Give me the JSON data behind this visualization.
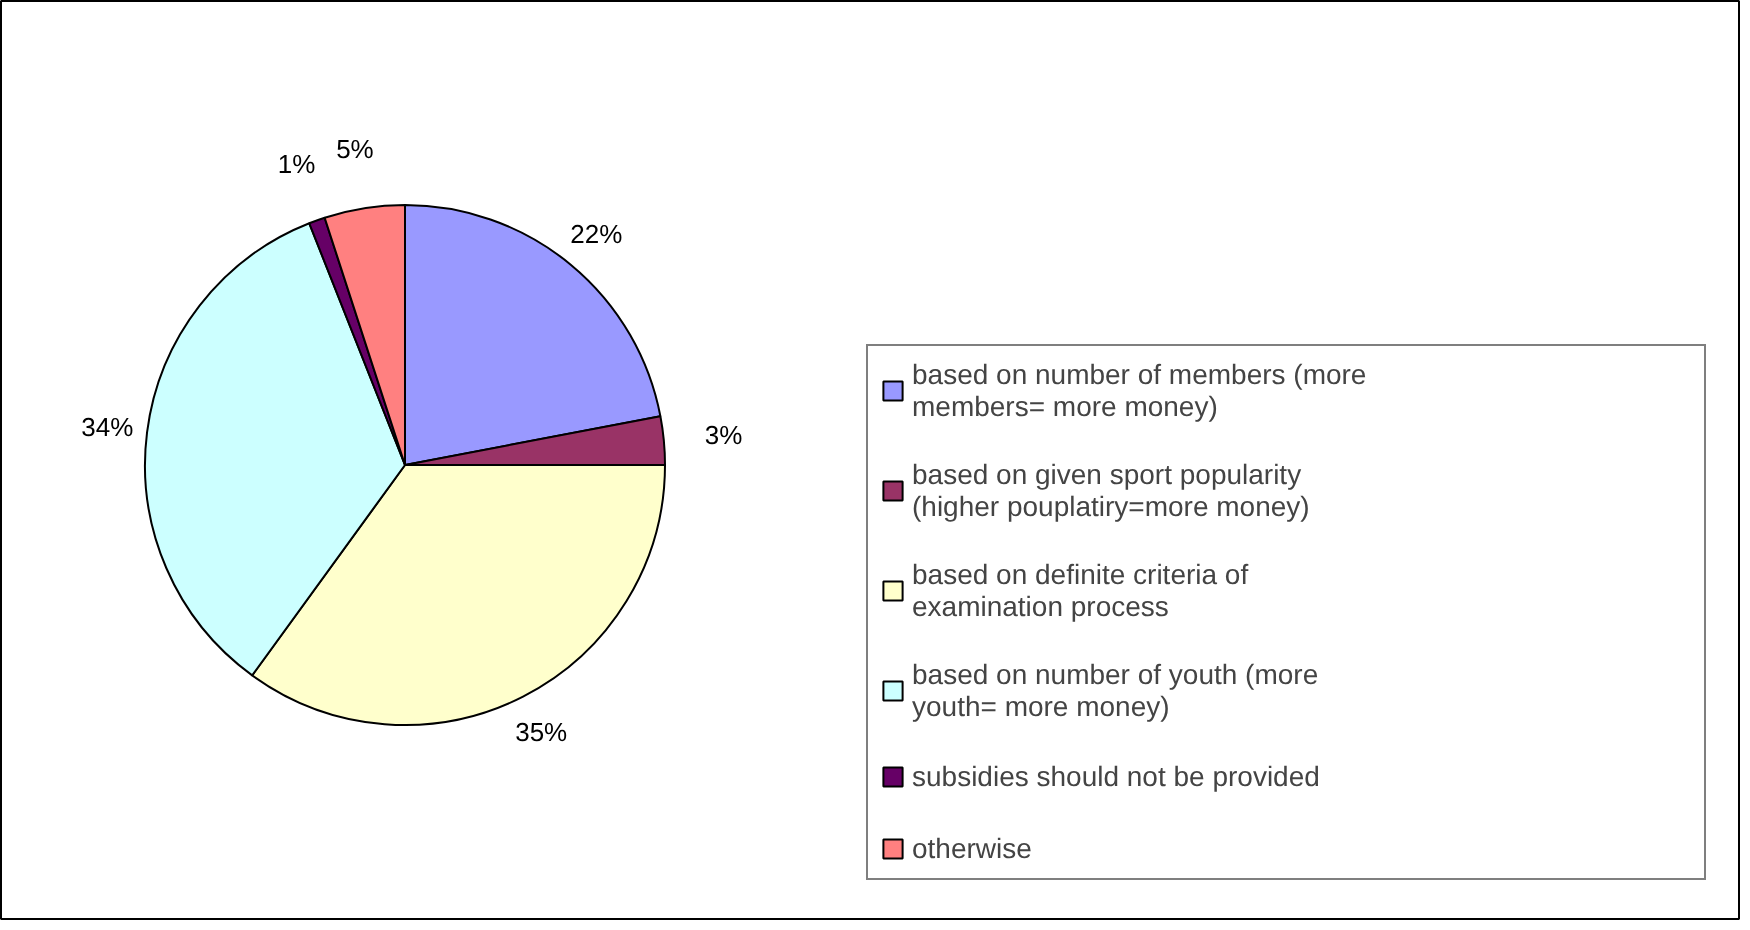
{
  "chart_data": {
    "type": "pie",
    "categories": [
      "based on number of members (more members= more money)",
      "based on given sport popularity (higher pouplatiry=more money)",
      "based on definite criteria of examination process",
      "based on number of youth (more youth= more money)",
      "subsidies should not be provided",
      "otherwise"
    ],
    "values": [
      22,
      3,
      35,
      34,
      1,
      5
    ],
    "colors": [
      "#9999ff",
      "#993366",
      "#ffffcc",
      "#ccffff",
      "#660066",
      "#ff8080"
    ],
    "value_labels": [
      "22%",
      "3%",
      "35%",
      "34%",
      "1%",
      "5%"
    ],
    "legend": "right"
  }
}
